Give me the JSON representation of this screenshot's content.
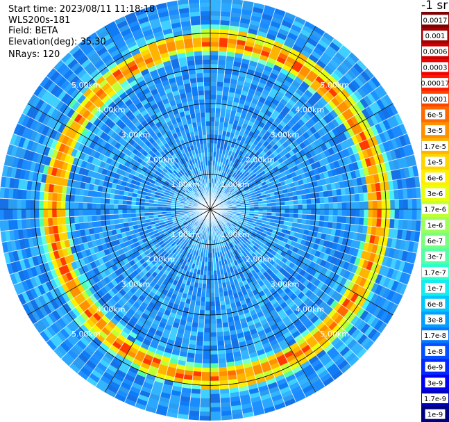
{
  "info": {
    "start_time": "Start time: 2023/08/11 11:18:18",
    "instrument": "WLS200s-181",
    "field": "Field: BETA",
    "elevation": "Elevation(deg): 35.30",
    "nrays": "NRays: 120"
  },
  "colorbar": {
    "unit": "-1 sr",
    "labels": [
      "0.0017",
      "0.001",
      "0.0006",
      "0.0003",
      "0.00017",
      "0.0001",
      "6e-5",
      "3e-5",
      "1.7e-5",
      "1e-5",
      "6e-6",
      "3e-6",
      "1.7e-6",
      "1e-6",
      "6e-7",
      "3e-7",
      "1.7e-7",
      "1e-7",
      "6e-8",
      "3e-8",
      "1.7e-8",
      "1e-8",
      "6e-9",
      "3e-9",
      "1.7e-9",
      "1e-9"
    ],
    "colors": [
      "#7f0000",
      "#a40000",
      "#cc0000",
      "#f20000",
      "#ff1a00",
      "#ff4400",
      "#ff6a00",
      "#ff9000",
      "#ffb400",
      "#ffd400",
      "#fff000",
      "#e8ff10",
      "#c2ff34",
      "#9cff5a",
      "#78ff80",
      "#52ffa6",
      "#2effca",
      "#14ecf0",
      "#00c8ff",
      "#00a0ff",
      "#0078ff",
      "#0050ff",
      "#0028ff",
      "#0000f0",
      "#0000b8",
      "#00007f"
    ]
  },
  "chart_data": {
    "type": "heatmap",
    "projection": "polar (PPI scan)",
    "field": "BETA",
    "elevation_deg": 35.3,
    "nrays": 120,
    "range_rings_km": [
      1,
      2,
      3,
      4,
      5
    ],
    "range_labels": [
      "1.00km",
      "2.00km",
      "3.00km",
      "4.00km",
      "5.00km"
    ],
    "max_range_km": 6.0,
    "dominant_value_interior": "1e-8 to 3e-8",
    "ring_feature": {
      "range_km": 5.0,
      "peak_value": "0.0006",
      "typical_value": "1e-5 to 1e-4"
    }
  }
}
